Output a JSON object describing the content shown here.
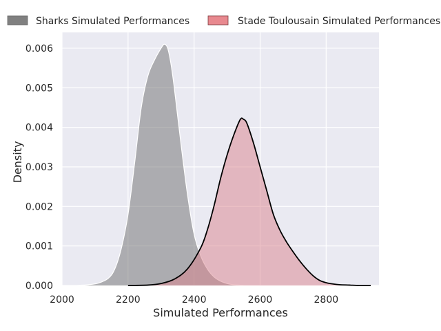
{
  "chart_data": {
    "type": "area",
    "xlabel": "Simulated Performances",
    "ylabel": "Density",
    "xlim": [
      2000,
      2960
    ],
    "ylim": [
      0,
      0.0064
    ],
    "x_ticks": [
      "2000",
      "2200",
      "2400",
      "2600",
      "2800"
    ],
    "y_ticks": [
      "0.000",
      "0.001",
      "0.002",
      "0.003",
      "0.004",
      "0.005",
      "0.006"
    ],
    "grid": true,
    "legend_position": "top, above plot",
    "background": "#eaeaf2",
    "series": [
      {
        "name": "Sharks Simulated Performances",
        "fill": "#6e6e6e",
        "fill_opacity": 0.5,
        "line_color": "#ffffff",
        "legend_color": "#808080",
        "x": [
          2045,
          2080,
          2110,
          2140,
          2160,
          2180,
          2200,
          2220,
          2240,
          2260,
          2280,
          2300,
          2310,
          2320,
          2330,
          2340,
          2360,
          2380,
          2400,
          2420,
          2440,
          2460,
          2480,
          2500,
          2520,
          2540,
          2560,
          2600
        ],
        "y": [
          0,
          2e-05,
          6e-05,
          0.00018,
          0.00042,
          0.00095,
          0.0018,
          0.0031,
          0.0045,
          0.0053,
          0.0057,
          0.006,
          0.0061,
          0.006,
          0.0056,
          0.005,
          0.0036,
          0.0023,
          0.0013,
          0.00075,
          0.00042,
          0.00022,
          0.00011,
          5e-05,
          2e-05,
          1e-05,
          0,
          0
        ]
      },
      {
        "name": "Stade Toulousain Simulated Performances",
        "fill": "#d9828b",
        "fill_opacity": 0.5,
        "line_color": "#000000",
        "legend_color": "#e8898f",
        "x": [
          2200,
          2260,
          2300,
          2340,
          2380,
          2420,
          2440,
          2460,
          2480,
          2500,
          2520,
          2540,
          2550,
          2560,
          2580,
          2600,
          2620,
          2640,
          2660,
          2680,
          2700,
          2720,
          2740,
          2760,
          2780,
          2800,
          2820,
          2840,
          2870,
          2900,
          2935
        ],
        "y": [
          0,
          1e-05,
          5e-05,
          0.00016,
          0.00042,
          0.00095,
          0.0014,
          0.002,
          0.0027,
          0.0033,
          0.0038,
          0.0042,
          0.0042,
          0.0041,
          0.0036,
          0.003,
          0.0024,
          0.0018,
          0.0014,
          0.0011,
          0.00085,
          0.00062,
          0.00042,
          0.00025,
          0.00013,
          7e-05,
          4e-05,
          2e-05,
          1e-05,
          0,
          0
        ]
      }
    ]
  }
}
